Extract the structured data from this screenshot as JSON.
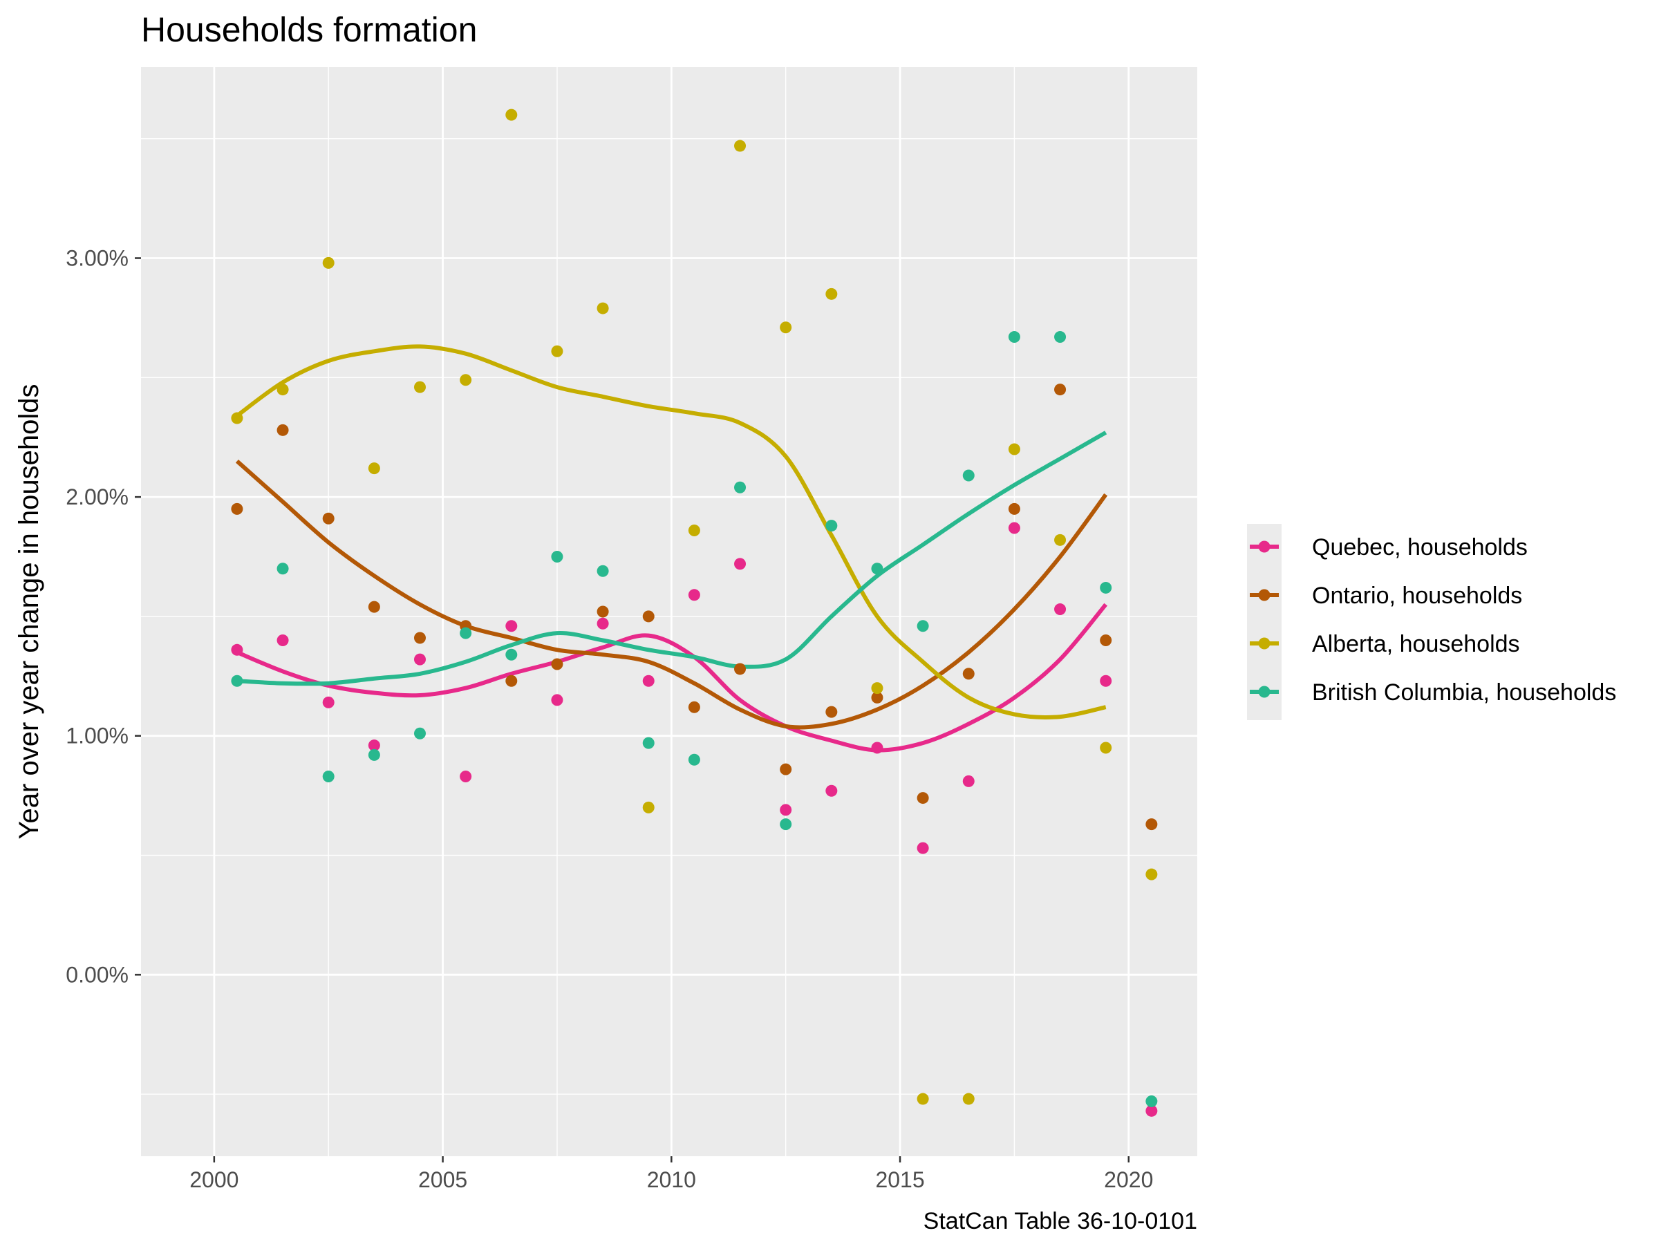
{
  "chart_data": {
    "type": "scatter",
    "title": "Households formation",
    "xlabel": "",
    "ylabel": "Year over year change in households",
    "caption": "StatCan Table 36-10-0101",
    "xlim": [
      1998.4,
      2021.5
    ],
    "ylim": [
      -0.76,
      3.8
    ],
    "x_ticks": [
      2000,
      2005,
      2010,
      2015,
      2020
    ],
    "x_tick_labels": [
      "2000",
      "2005",
      "2010",
      "2015",
      "2020"
    ],
    "y_ticks": [
      0,
      1,
      2,
      3
    ],
    "y_tick_labels": [
      "0.00%",
      "1.00%",
      "2.00%",
      "3.00%"
    ],
    "y_unit": "%",
    "grid": true,
    "legend_position": "right",
    "smoothing": "loess",
    "x": [
      2000.5,
      2001.5,
      2002.5,
      2003.5,
      2004.5,
      2005.5,
      2006.5,
      2007.5,
      2008.5,
      2009.5,
      2010.5,
      2011.5,
      2012.5,
      2013.5,
      2014.5,
      2015.5,
      2016.5,
      2017.5,
      2018.5,
      2019.5,
      2020.5
    ],
    "series": [
      {
        "name": "Quebec, households",
        "color": "#e7298a",
        "values": [
          1.36,
          1.4,
          1.14,
          0.96,
          1.32,
          0.83,
          1.46,
          1.15,
          1.47,
          1.23,
          1.59,
          1.72,
          0.69,
          0.77,
          0.95,
          0.53,
          0.81,
          1.87,
          1.53,
          1.23,
          -0.57
        ],
        "trend": [
          1.35,
          1.27,
          1.21,
          1.18,
          1.17,
          1.2,
          1.26,
          1.31,
          1.37,
          1.42,
          1.33,
          1.15,
          1.04,
          0.98,
          0.94,
          0.97,
          1.05,
          1.16,
          1.32,
          1.55
        ]
      },
      {
        "name": "Ontario, households",
        "color": "#b35806",
        "values": [
          1.95,
          2.28,
          1.91,
          1.54,
          1.41,
          1.46,
          1.23,
          1.3,
          1.52,
          1.5,
          1.12,
          1.28,
          0.86,
          1.1,
          1.16,
          0.74,
          1.26,
          1.95,
          2.45,
          1.4,
          0.63
        ],
        "trend": [
          2.15,
          1.98,
          1.81,
          1.67,
          1.55,
          1.46,
          1.41,
          1.36,
          1.34,
          1.31,
          1.22,
          1.11,
          1.04,
          1.05,
          1.11,
          1.21,
          1.35,
          1.53,
          1.75,
          2.01
        ]
      },
      {
        "name": "Alberta, households",
        "color": "#c5ad00",
        "values": [
          2.33,
          2.45,
          2.98,
          2.12,
          2.46,
          2.49,
          3.6,
          2.61,
          2.79,
          0.7,
          1.86,
          3.47,
          2.71,
          2.85,
          1.2,
          -0.52,
          -0.52,
          2.2,
          1.82,
          0.95,
          0.42
        ],
        "trend": [
          2.34,
          2.48,
          2.57,
          2.61,
          2.63,
          2.6,
          2.53,
          2.46,
          2.42,
          2.38,
          2.35,
          2.31,
          2.17,
          1.84,
          1.5,
          1.31,
          1.16,
          1.09,
          1.08,
          1.12
        ]
      },
      {
        "name": "British Columbia, households",
        "color": "#28b88e",
        "values": [
          1.23,
          1.7,
          0.83,
          0.92,
          1.01,
          1.43,
          1.34,
          1.75,
          1.69,
          0.97,
          0.9,
          2.04,
          0.63,
          1.88,
          1.7,
          1.46,
          2.09,
          2.67,
          2.67,
          1.62,
          -0.53
        ],
        "trend": [
          1.23,
          1.22,
          1.22,
          1.24,
          1.26,
          1.31,
          1.38,
          1.43,
          1.4,
          1.36,
          1.33,
          1.29,
          1.32,
          1.5,
          1.67,
          1.8,
          1.93,
          2.05,
          2.16,
          2.27
        ]
      }
    ]
  }
}
